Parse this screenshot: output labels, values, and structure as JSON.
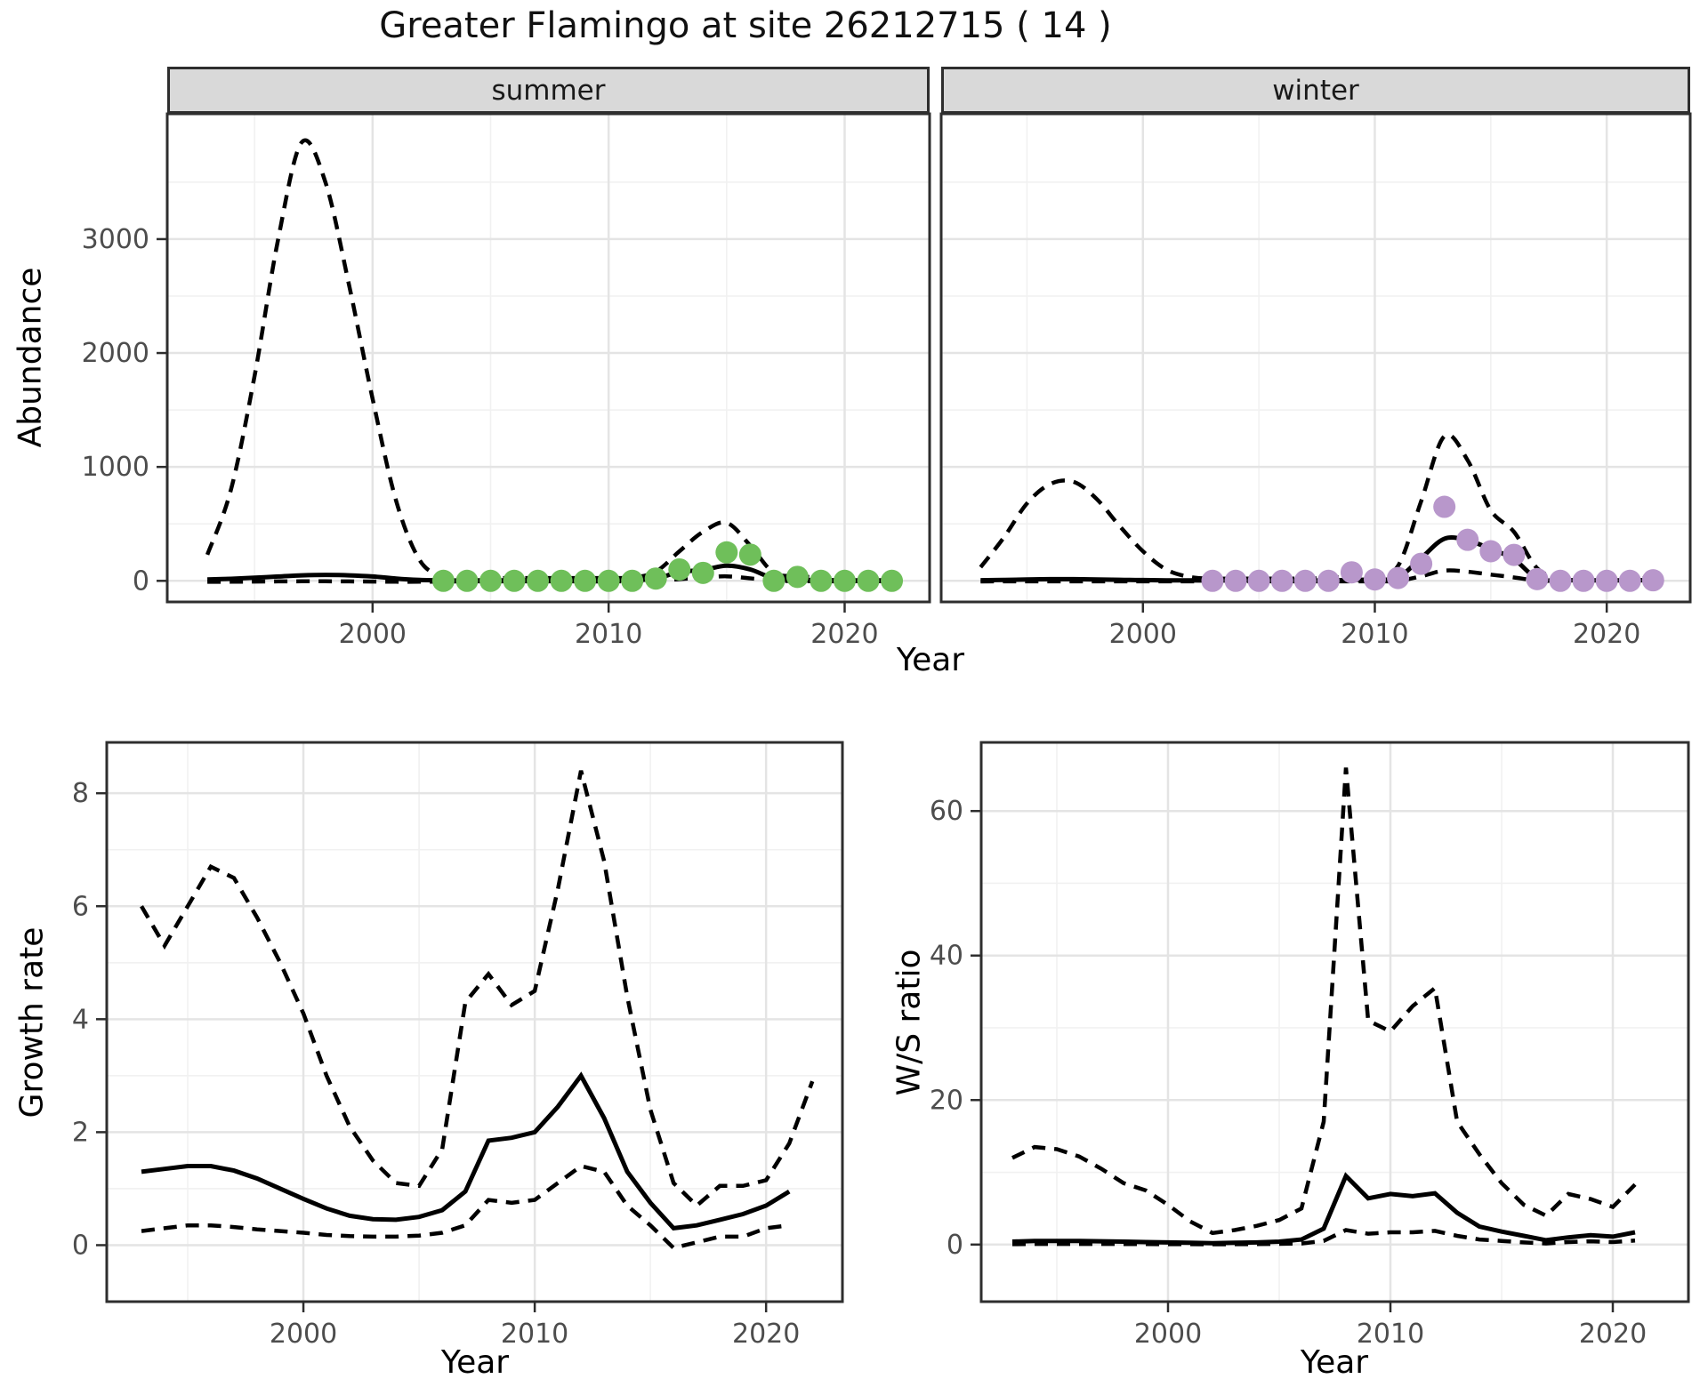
{
  "title": "Greater Flamingo at site 26212715 ( 14 )",
  "facets": {
    "summer": "summer",
    "winter": "winter"
  },
  "axis_labels": {
    "abundance": "Abundance",
    "year_top": "Year",
    "growth_rate": "Growth rate",
    "ws_ratio": "W/S ratio",
    "year_bottom": "Year"
  },
  "colors": {
    "summer_points": "#6FBF5A",
    "winter_points": "#B897CB",
    "line": "#000000",
    "strip_bg": "#D9D9D9",
    "grid_major": "#E4E4E4",
    "grid_minor": "#F1F1F1",
    "tick_text": "#4D4D4D",
    "border": "#2E2E2E"
  },
  "chart_data": [
    {
      "id": "abundance_summer",
      "type": "line",
      "facet": "summer",
      "title": "",
      "xlabel": "Year",
      "ylabel": "Abundance",
      "xlim": [
        1991.3,
        2023.6
      ],
      "ylim": [
        -185,
        4100
      ],
      "x_major_ticks": [
        2000,
        2010,
        2020
      ],
      "x_minor_ticks": [
        1995,
        2005,
        2015
      ],
      "x_tick_labels": [
        "2000",
        "2010",
        "2020"
      ],
      "y_major_ticks": [
        0,
        1000,
        2000,
        3000
      ],
      "y_minor_ticks": [
        500,
        1500,
        2500,
        3500
      ],
      "y_tick_labels": [
        "0",
        "1000",
        "2000",
        "3000"
      ],
      "smooth": true,
      "x": [
        1993,
        1994,
        1995,
        1996,
        1997,
        1998,
        1999,
        2000,
        2001,
        2002,
        2003,
        2004,
        2005,
        2006,
        2007,
        2008,
        2009,
        2010,
        2011,
        2012,
        2013,
        2014,
        2015,
        2016,
        2017,
        2018,
        2019,
        2020,
        2021,
        2022
      ],
      "series": [
        {
          "name": "upper_95ci",
          "style": "dashed",
          "values": [
            230,
            800,
            1800,
            3000,
            3850,
            3500,
            2600,
            1600,
            700,
            180,
            40,
            25,
            25,
            25,
            25,
            25,
            25,
            25,
            30,
            80,
            260,
            430,
            510,
            310,
            70,
            45,
            25,
            25,
            25,
            30
          ]
        },
        {
          "name": "mean",
          "style": "solid",
          "values": [
            12,
            18,
            28,
            38,
            48,
            52,
            48,
            38,
            20,
            8,
            4,
            4,
            4,
            4,
            4,
            4,
            4,
            4,
            5,
            20,
            78,
            95,
            133,
            100,
            22,
            10,
            6,
            5,
            5,
            5
          ]
        },
        {
          "name": "lower_95ci",
          "style": "dashed",
          "values": [
            -8,
            -8,
            -6,
            -5,
            -4,
            -4,
            -5,
            -6,
            -8,
            -8,
            -6,
            -5,
            -5,
            -5,
            -5,
            -5,
            -5,
            -5,
            -4,
            0,
            15,
            28,
            40,
            22,
            2,
            -2,
            -4,
            -4,
            -4,
            -4
          ]
        }
      ],
      "points": {
        "name": "observed_counts_summer",
        "color_key": "summer_points",
        "x": [
          2003,
          2004,
          2005,
          2006,
          2007,
          2008,
          2009,
          2010,
          2011,
          2012,
          2013,
          2014,
          2015,
          2016,
          2017,
          2018,
          2019,
          2020,
          2021,
          2022
        ],
        "values": [
          0,
          0,
          0,
          0,
          0,
          0,
          0,
          0,
          0,
          20,
          100,
          70,
          250,
          230,
          0,
          35,
          0,
          0,
          0,
          0
        ]
      }
    },
    {
      "id": "abundance_winter",
      "type": "line",
      "facet": "winter",
      "title": "",
      "xlabel": "Year",
      "ylabel": "Abundance",
      "xlim": [
        1991.3,
        2023.6
      ],
      "ylim": [
        -185,
        4100
      ],
      "x_major_ticks": [
        2000,
        2010,
        2020
      ],
      "x_minor_ticks": [
        1995,
        2005,
        2015
      ],
      "x_tick_labels": [
        "2000",
        "2010",
        "2020"
      ],
      "y_major_ticks": [
        0,
        1000,
        2000,
        3000
      ],
      "y_minor_ticks": [
        500,
        1500,
        2500,
        3500
      ],
      "y_tick_labels": [
        "0",
        "1000",
        "2000",
        "3000"
      ],
      "smooth": true,
      "x": [
        1993,
        1994,
        1995,
        1996,
        1997,
        1998,
        1999,
        2000,
        2001,
        2002,
        2003,
        2004,
        2005,
        2006,
        2007,
        2008,
        2009,
        2010,
        2011,
        2012,
        2013,
        2014,
        2015,
        2016,
        2017,
        2018,
        2019,
        2020,
        2021,
        2022
      ],
      "series": [
        {
          "name": "upper_95ci",
          "style": "dashed",
          "values": [
            120,
            380,
            680,
            850,
            870,
            720,
            480,
            260,
            100,
            35,
            20,
            20,
            20,
            20,
            20,
            25,
            45,
            60,
            130,
            700,
            1270,
            1060,
            620,
            430,
            110,
            30,
            20,
            20,
            20,
            25
          ]
        },
        {
          "name": "mean",
          "style": "solid",
          "values": [
            5,
            8,
            12,
            15,
            15,
            12,
            9,
            7,
            5,
            4,
            3,
            3,
            3,
            3,
            3,
            4,
            8,
            12,
            30,
            200,
            370,
            355,
            280,
            190,
            20,
            6,
            5,
            5,
            5,
            6
          ]
        },
        {
          "name": "lower_95ci",
          "style": "dashed",
          "values": [
            -5,
            -5,
            -5,
            -5,
            -5,
            -5,
            -5,
            -5,
            -5,
            -5,
            -5,
            -5,
            -5,
            -5,
            -5,
            -5,
            -5,
            -5,
            0,
            40,
            90,
            80,
            55,
            30,
            3,
            -3,
            -4,
            -4,
            -4,
            -3
          ]
        }
      ],
      "points": {
        "name": "observed_counts_winter",
        "color_key": "winter_points",
        "x": [
          2003,
          2004,
          2005,
          2006,
          2007,
          2008,
          2009,
          2010,
          2011,
          2012,
          2013,
          2014,
          2015,
          2016,
          2017,
          2018,
          2019,
          2020,
          2021,
          2022
        ],
        "values": [
          0,
          0,
          0,
          0,
          0,
          0,
          75,
          12,
          25,
          150,
          650,
          360,
          260,
          228,
          15,
          0,
          0,
          0,
          0,
          5
        ]
      }
    },
    {
      "id": "growth_rate",
      "type": "line",
      "facet": "",
      "title": "",
      "xlabel": "Year",
      "ylabel": "Growth rate",
      "xlim": [
        1991.5,
        2023.3
      ],
      "ylim": [
        -1.0,
        8.9
      ],
      "x_major_ticks": [
        2000,
        2010,
        2020
      ],
      "x_minor_ticks": [
        1995,
        2005,
        2015
      ],
      "x_tick_labels": [
        "2000",
        "2010",
        "2020"
      ],
      "y_major_ticks": [
        0,
        2,
        4,
        6,
        8
      ],
      "y_minor_ticks": [
        1,
        3,
        5,
        7
      ],
      "y_tick_labels": [
        "0",
        "2",
        "4",
        "6",
        "8"
      ],
      "smooth": false,
      "x": [
        1993,
        1994,
        1995,
        1996,
        1997,
        1998,
        1999,
        2000,
        2001,
        2002,
        2003,
        2004,
        2005,
        2006,
        2007,
        2008,
        2009,
        2010,
        2011,
        2012,
        2013,
        2014,
        2015,
        2016,
        2017,
        2018,
        2019,
        2020,
        2021,
        2022
      ],
      "series": [
        {
          "name": "upper_95ci",
          "style": "dashed",
          "values": [
            6.0,
            5.3,
            6.0,
            6.7,
            6.5,
            5.8,
            5.0,
            4.1,
            3.0,
            2.1,
            1.5,
            1.1,
            1.05,
            1.7,
            4.3,
            4.8,
            4.25,
            4.5,
            6.3,
            8.4,
            6.8,
            4.4,
            2.4,
            1.1,
            0.7,
            1.05,
            1.05,
            1.15,
            1.8,
            2.9
          ]
        },
        {
          "name": "mean",
          "style": "solid",
          "values": [
            1.3,
            1.35,
            1.4,
            1.4,
            1.32,
            1.18,
            1.0,
            0.82,
            0.65,
            0.52,
            0.46,
            0.45,
            0.5,
            0.62,
            0.95,
            1.85,
            1.9,
            2.0,
            2.45,
            3.0,
            2.25,
            1.3,
            0.75,
            0.3,
            0.35,
            0.45,
            0.55,
            0.7,
            0.95,
            null
          ]
        },
        {
          "name": "lower_95ci",
          "style": "dashed",
          "values": [
            0.25,
            0.3,
            0.35,
            0.35,
            0.32,
            0.28,
            0.25,
            0.22,
            0.18,
            0.16,
            0.15,
            0.15,
            0.17,
            0.22,
            0.35,
            0.8,
            0.75,
            0.8,
            1.1,
            1.4,
            1.3,
            0.7,
            0.35,
            -0.05,
            0.05,
            0.15,
            0.15,
            0.3,
            0.35,
            null
          ]
        }
      ],
      "points": null
    },
    {
      "id": "ws_ratio",
      "type": "line",
      "facet": "",
      "title": "",
      "xlabel": "Year",
      "ylabel": "W/S ratio",
      "xlim": [
        1991.6,
        2023.4
      ],
      "ylim": [
        -7.9,
        69.5
      ],
      "x_major_ticks": [
        2000,
        2010,
        2020
      ],
      "x_minor_ticks": [
        1995,
        2005,
        2015
      ],
      "x_tick_labels": [
        "2000",
        "2010",
        "2020"
      ],
      "y_major_ticks": [
        0,
        20,
        40,
        60
      ],
      "y_minor_ticks": [
        10,
        30,
        50
      ],
      "y_tick_labels": [
        "0",
        "20",
        "40",
        "60"
      ],
      "smooth": false,
      "x": [
        1993,
        1994,
        1995,
        1996,
        1997,
        1998,
        1999,
        2000,
        2001,
        2002,
        2003,
        2004,
        2005,
        2006,
        2007,
        2008,
        2009,
        2010,
        2011,
        2012,
        2013,
        2014,
        2015,
        2016,
        2017,
        2018,
        2019,
        2020,
        2021
      ],
      "series": [
        {
          "name": "upper_95ci",
          "style": "dashed",
          "values": [
            12,
            13.5,
            13.2,
            12.2,
            10.5,
            8.5,
            7.5,
            5.5,
            3.2,
            1.6,
            2.0,
            2.6,
            3.4,
            5.0,
            17,
            66,
            31,
            29.5,
            33,
            35.5,
            17,
            12.5,
            8.5,
            5.5,
            4.0,
            7.0,
            6.3,
            5.2,
            8.3
          ]
        },
        {
          "name": "mean",
          "style": "solid",
          "values": [
            0.4,
            0.5,
            0.5,
            0.5,
            0.45,
            0.4,
            0.35,
            0.3,
            0.25,
            0.2,
            0.25,
            0.3,
            0.4,
            0.7,
            2.2,
            9.5,
            6.4,
            7.0,
            6.7,
            7.1,
            4.4,
            2.5,
            1.8,
            1.2,
            0.6,
            1.0,
            1.3,
            1.1,
            1.7
          ]
        },
        {
          "name": "lower_95ci",
          "style": "dashed",
          "values": [
            0.05,
            0.08,
            0.08,
            0.08,
            0.08,
            0.07,
            0.06,
            0.05,
            0.05,
            0.04,
            0.05,
            0.06,
            0.1,
            0.15,
            0.5,
            2.0,
            1.5,
            1.7,
            1.7,
            1.9,
            1.2,
            0.7,
            0.5,
            0.3,
            0.15,
            0.35,
            0.45,
            0.35,
            0.55
          ]
        }
      ],
      "points": null
    }
  ]
}
